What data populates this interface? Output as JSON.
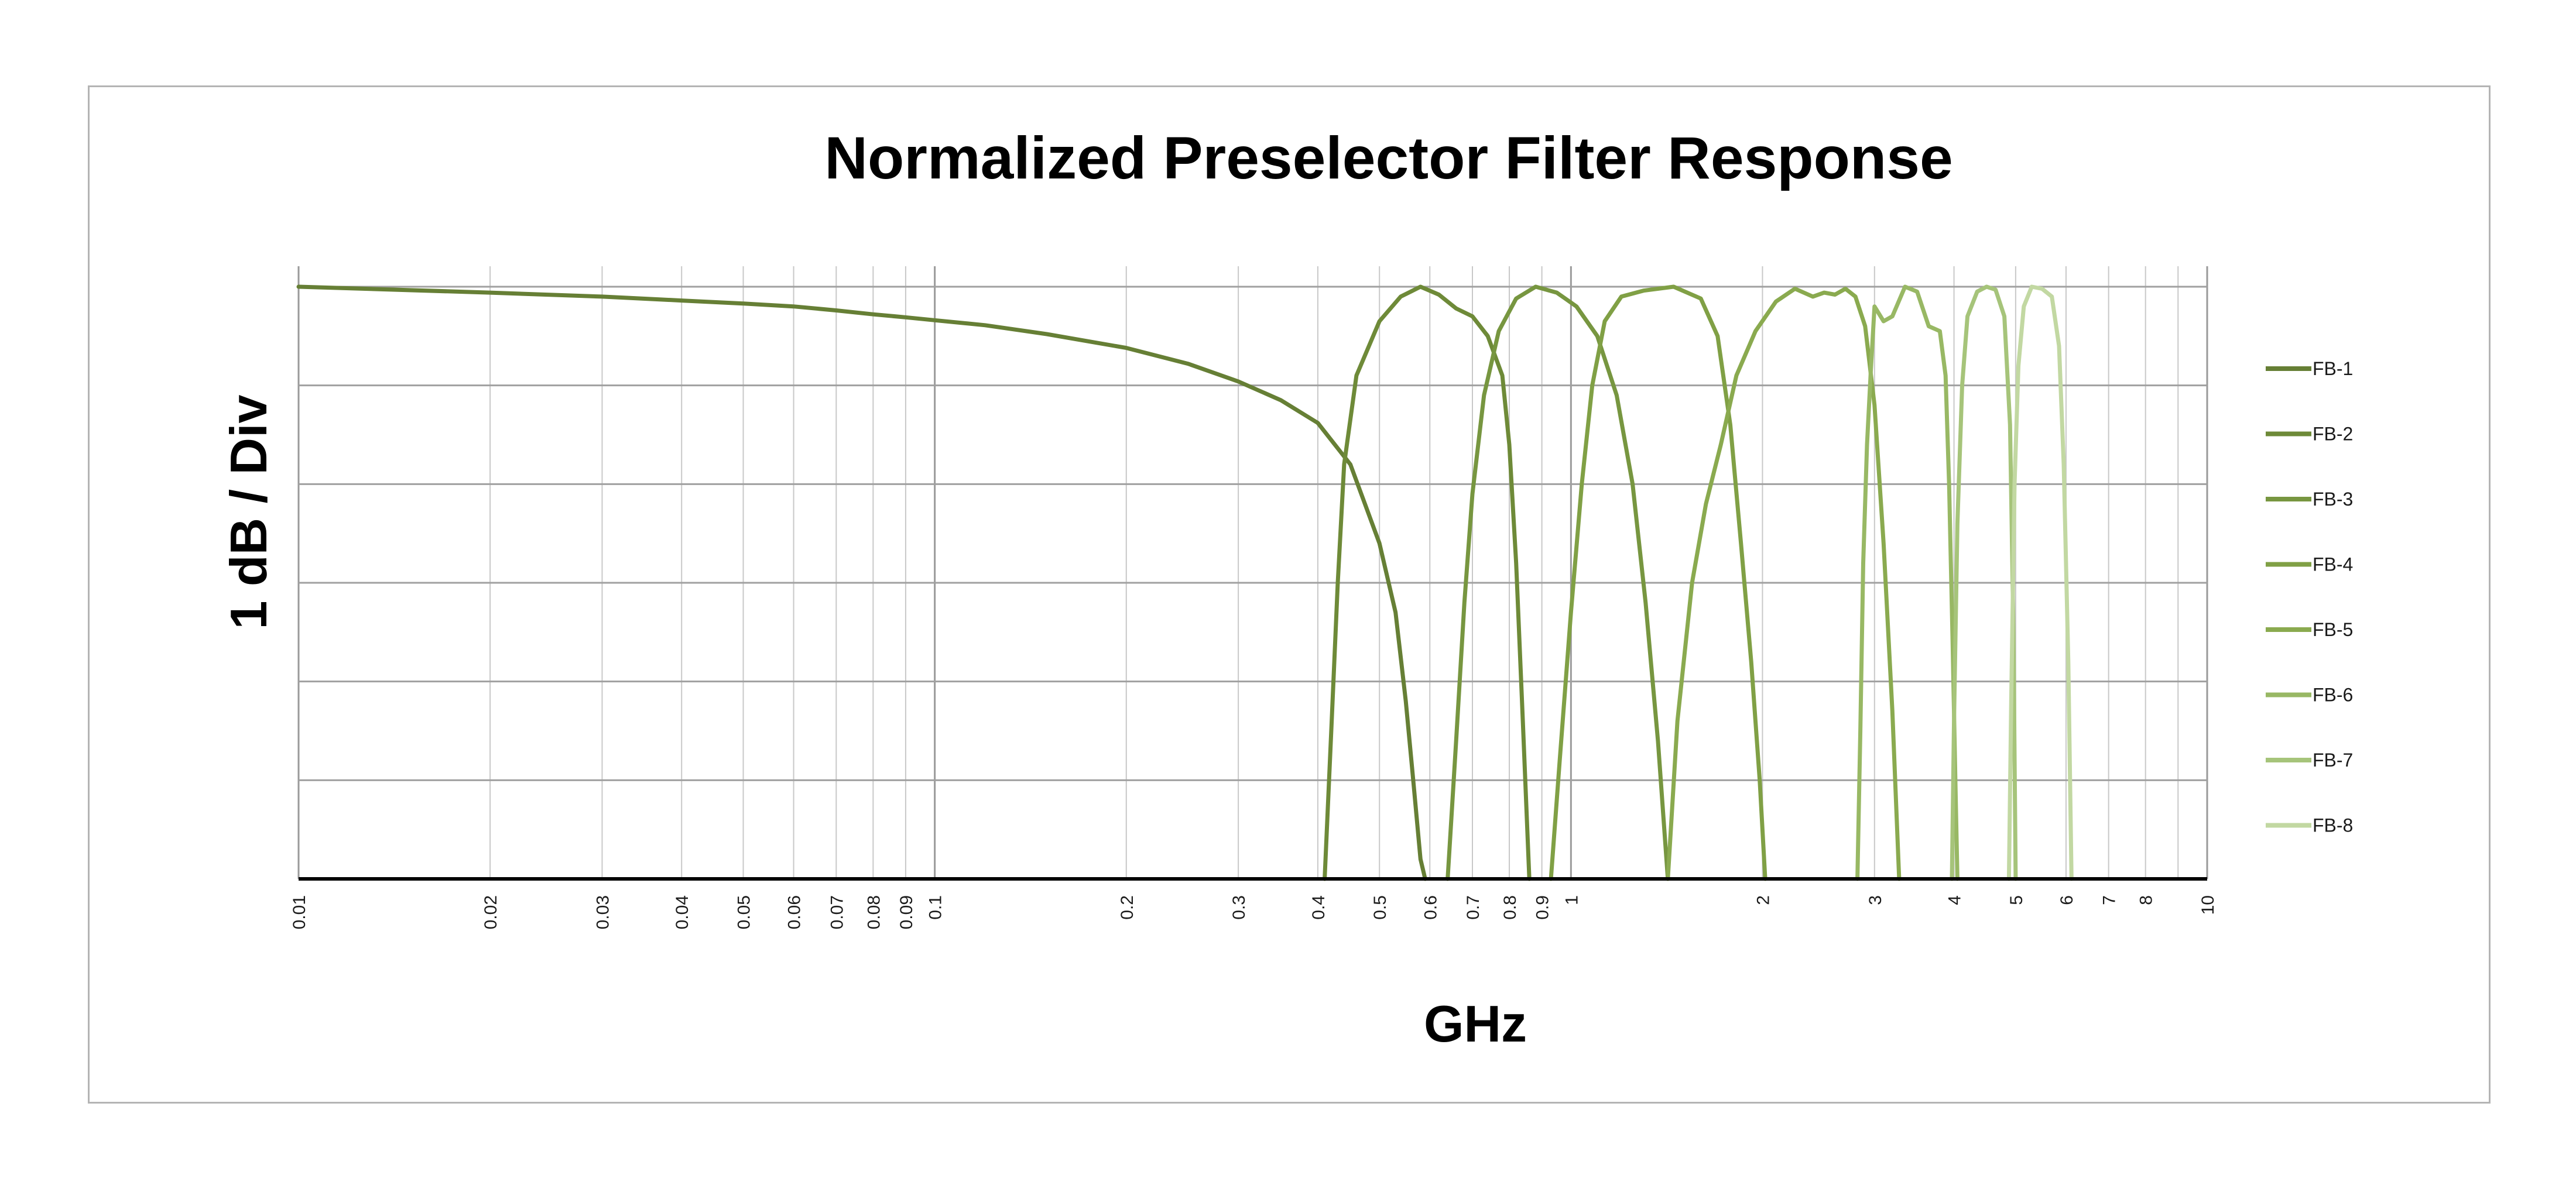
{
  "chart_data": {
    "type": "line",
    "title": "Normalized Preselector Filter Response",
    "xlabel": "GHz",
    "ylabel": "1 dB / Div",
    "x_scale": "log",
    "xlim": [
      0.01,
      10
    ],
    "ylim": [
      -6,
      0
    ],
    "y_tick_step": 1,
    "grid": true,
    "legend_position": "right",
    "x_ticks": [
      {
        "value": 0.01,
        "label": "0.01"
      },
      {
        "value": 0.02,
        "label": "0.02"
      },
      {
        "value": 0.03,
        "label": "0.03"
      },
      {
        "value": 0.04,
        "label": "0.04"
      },
      {
        "value": 0.05,
        "label": "0.05"
      },
      {
        "value": 0.06,
        "label": "0.06"
      },
      {
        "value": 0.07,
        "label": "0.07"
      },
      {
        "value": 0.08,
        "label": "0.08"
      },
      {
        "value": 0.09,
        "label": "0.09"
      },
      {
        "value": 0.1,
        "label": "0.1"
      },
      {
        "value": 0.2,
        "label": "0.2"
      },
      {
        "value": 0.3,
        "label": "0.3"
      },
      {
        "value": 0.4,
        "label": "0.4"
      },
      {
        "value": 0.5,
        "label": "0.5"
      },
      {
        "value": 0.6,
        "label": "0.6"
      },
      {
        "value": 0.7,
        "label": "0.7"
      },
      {
        "value": 0.8,
        "label": "0.8"
      },
      {
        "value": 0.9,
        "label": "0.9"
      },
      {
        "value": 1,
        "label": "1"
      },
      {
        "value": 2,
        "label": "2"
      },
      {
        "value": 3,
        "label": "3"
      },
      {
        "value": 4,
        "label": "4"
      },
      {
        "value": 5,
        "label": "5"
      },
      {
        "value": 6,
        "label": "6"
      },
      {
        "value": 7,
        "label": "7"
      },
      {
        "value": 8,
        "label": "8"
      },
      {
        "value": 9,
        "label": ""
      },
      {
        "value": 10,
        "label": "10"
      }
    ],
    "series": [
      {
        "name": "FB-1",
        "color": "#667f35",
        "x": [
          0.01,
          0.02,
          0.03,
          0.04,
          0.05,
          0.06,
          0.07,
          0.08,
          0.09,
          0.1,
          0.12,
          0.15,
          0.2,
          0.25,
          0.3,
          0.35,
          0.4,
          0.45,
          0.5,
          0.53,
          0.55,
          0.565,
          0.58,
          0.59
        ],
        "y": [
          0,
          -0.06,
          -0.1,
          -0.14,
          -0.17,
          -0.2,
          -0.24,
          -0.28,
          -0.31,
          -0.34,
          -0.39,
          -0.48,
          -0.62,
          -0.78,
          -0.96,
          -1.15,
          -1.38,
          -1.8,
          -2.6,
          -3.3,
          -4.2,
          -5.0,
          -5.8,
          -6.0
        ]
      },
      {
        "name": "FB-2",
        "color": "#6e8a38",
        "x": [
          0.41,
          0.42,
          0.43,
          0.44,
          0.46,
          0.5,
          0.54,
          0.58,
          0.62,
          0.66,
          0.7,
          0.74,
          0.78,
          0.8,
          0.82,
          0.84,
          0.86
        ],
        "y": [
          -6.0,
          -4.5,
          -3.0,
          -1.8,
          -0.9,
          -0.35,
          -0.1,
          0,
          -0.08,
          -0.22,
          -0.3,
          -0.5,
          -0.9,
          -1.6,
          -2.8,
          -4.4,
          -6.0
        ]
      },
      {
        "name": "FB-3",
        "color": "#779640",
        "x": [
          0.64,
          0.66,
          0.68,
          0.7,
          0.73,
          0.77,
          0.82,
          0.88,
          0.95,
          1.02,
          1.1,
          1.18,
          1.25,
          1.31,
          1.37,
          1.42
        ],
        "y": [
          -6.0,
          -4.6,
          -3.2,
          -2.1,
          -1.1,
          -0.45,
          -0.12,
          0,
          -0.06,
          -0.2,
          -0.5,
          -1.1,
          -2.0,
          -3.2,
          -4.6,
          -6.0
        ]
      },
      {
        "name": "FB-4",
        "color": "#80a045",
        "x": [
          0.93,
          0.96,
          1.0,
          1.04,
          1.08,
          1.13,
          1.2,
          1.3,
          1.45,
          1.6,
          1.7,
          1.78,
          1.85,
          1.92,
          1.98,
          2.02
        ],
        "y": [
          -6.0,
          -4.8,
          -3.3,
          -2.0,
          -1.0,
          -0.35,
          -0.1,
          -0.04,
          0,
          -0.12,
          -0.5,
          -1.4,
          -2.6,
          -3.8,
          -5.0,
          -6.0
        ]
      },
      {
        "name": "FB-5",
        "color": "#8aaa4f",
        "x": [
          1.42,
          1.47,
          1.55,
          1.63,
          1.72,
          1.82,
          1.95,
          2.1,
          2.25,
          2.4,
          2.5,
          2.6,
          2.7,
          2.8,
          2.9,
          3.0,
          3.1,
          3.2,
          3.28
        ],
        "y": [
          -6.0,
          -4.4,
          -3.0,
          -2.2,
          -1.6,
          -0.9,
          -0.45,
          -0.15,
          -0.02,
          -0.1,
          -0.06,
          -0.08,
          -0.02,
          -0.1,
          -0.4,
          -1.2,
          -2.6,
          -4.3,
          -6.0
        ]
      },
      {
        "name": "FB-6",
        "color": "#98b864",
        "x": [
          2.82,
          2.85,
          2.88,
          2.92,
          2.96,
          3.0,
          3.1,
          3.2,
          3.35,
          3.5,
          3.65,
          3.8,
          3.88,
          3.93,
          3.98,
          4.02,
          4.05
        ],
        "y": [
          -6.0,
          -4.5,
          -2.8,
          -1.6,
          -0.85,
          -0.2,
          -0.35,
          -0.3,
          0,
          -0.05,
          -0.4,
          -0.45,
          -0.9,
          -2.0,
          -3.6,
          -5.0,
          -6.0
        ]
      },
      {
        "name": "FB-7",
        "color": "#a6c47a",
        "x": [
          3.97,
          4.0,
          4.05,
          4.12,
          4.2,
          4.35,
          4.5,
          4.65,
          4.8,
          4.9,
          4.96,
          5.0
        ],
        "y": [
          -6.0,
          -4.4,
          -2.4,
          -1.0,
          -0.3,
          -0.05,
          0,
          -0.03,
          -0.3,
          -1.4,
          -3.5,
          -6.0
        ]
      },
      {
        "name": "FB-8",
        "color": "#c2d8a2",
        "x": [
          4.88,
          4.92,
          4.98,
          5.05,
          5.15,
          5.3,
          5.5,
          5.7,
          5.85,
          5.95,
          6.05,
          6.12
        ],
        "y": [
          -6.0,
          -4.2,
          -2.0,
          -0.8,
          -0.2,
          0,
          -0.02,
          -0.1,
          -0.6,
          -1.8,
          -3.8,
          -6.0
        ]
      }
    ]
  }
}
